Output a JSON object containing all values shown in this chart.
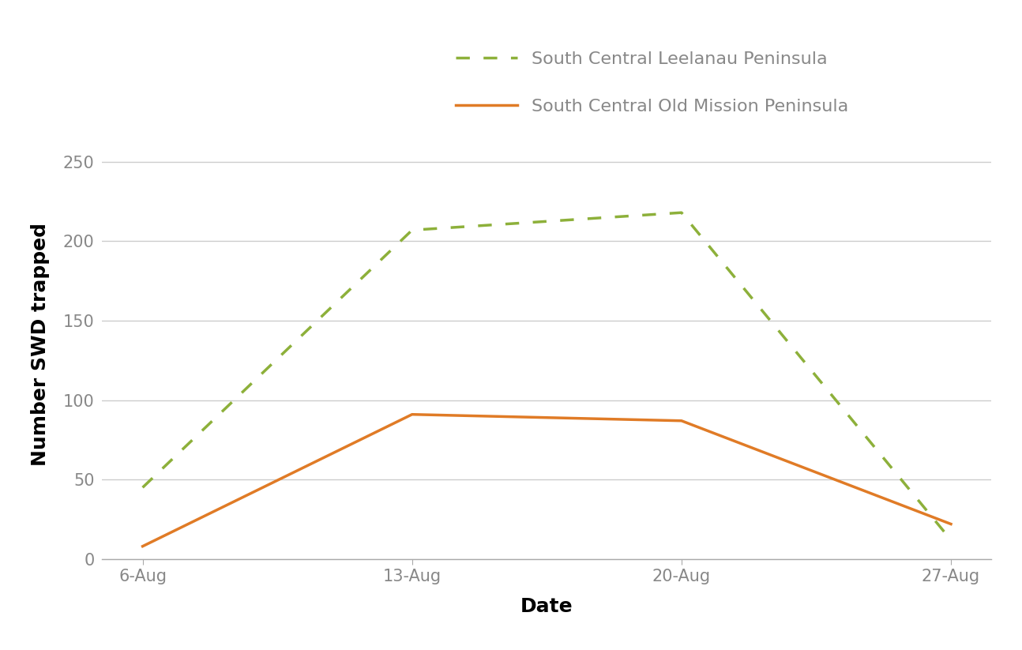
{
  "dates": [
    "6-Aug",
    "13-Aug",
    "20-Aug",
    "27-Aug"
  ],
  "leelanau_values": [
    45,
    207,
    218,
    12
  ],
  "old_mission_values": [
    8,
    91,
    87,
    22
  ],
  "leelanau_color": "#8db03a",
  "old_mission_color": "#e07b26",
  "leelanau_label": "South Central Leelanau Peninsula",
  "old_mission_label": "South Central Old Mission Peninsula",
  "ylabel": "Number SWD trapped",
  "xlabel": "Date",
  "ylim": [
    0,
    270
  ],
  "yticks": [
    0,
    50,
    100,
    150,
    200,
    250
  ],
  "background_color": "#ffffff",
  "grid_color": "#cccccc",
  "tick_color": "#888888",
  "axis_label_fontsize": 18,
  "tick_fontsize": 15,
  "legend_fontsize": 16
}
